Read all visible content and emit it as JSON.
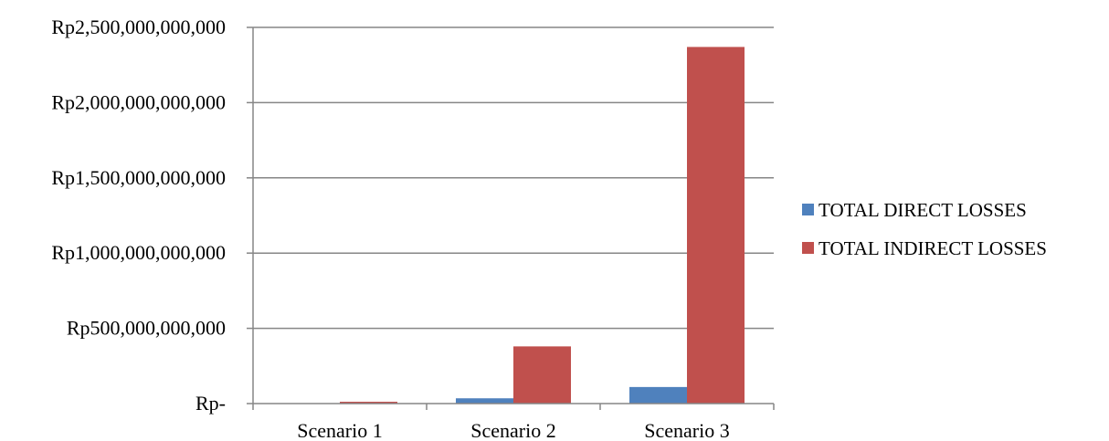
{
  "chart_data": {
    "type": "bar",
    "title": "",
    "xlabel": "",
    "ylabel": "",
    "categories": [
      "Scenario 1",
      "Scenario 2",
      "Scenario 3"
    ],
    "series": [
      {
        "name": "TOTAL DIRECT LOSSES",
        "color": "#4F81BD",
        "values": [
          1000000000,
          35000000000,
          110000000000
        ]
      },
      {
        "name": "TOTAL INDIRECT LOSSES",
        "color": "#C0504D",
        "values": [
          12000000000,
          380000000000,
          2370000000000
        ]
      }
    ],
    "ylim": [
      0,
      2500000000000
    ],
    "yticks": [
      0,
      500000000000,
      1000000000000,
      1500000000000,
      2000000000000,
      2500000000000
    ],
    "ytick_labels": [
      "Rp-",
      "Rp500,000,000,000",
      "Rp1,000,000,000,000",
      "Rp1,500,000,000,000",
      "Rp2,000,000,000,000",
      "Rp2,500,000,000,000"
    ],
    "grid": true,
    "legend": "right",
    "gridline_color": "#868686",
    "axis_color": "#868686"
  }
}
